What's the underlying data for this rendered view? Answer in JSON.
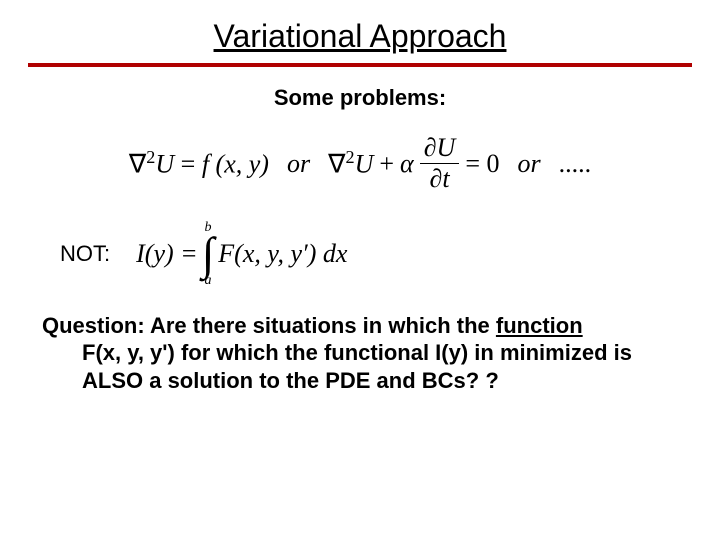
{
  "title": "Variational Approach",
  "subhead": "Some problems:",
  "eq": {
    "term1_lhs_pre": "∇",
    "term1_lhs_sup": "2",
    "term1_lhs_U": "U",
    "term1_eq": "=",
    "term1_rhs": "f (x, y)",
    "or1": "or",
    "term2_pre": "∇",
    "term2_sup": "2",
    "term2_U": "U",
    "term2_plus": "+",
    "term2_alpha": "α",
    "term2_frac_num": "∂U",
    "term2_frac_den": "∂t",
    "term2_eq0": "= 0",
    "or2": "or",
    "dots": "....."
  },
  "not_label": "NOT:",
  "integral": {
    "lhs": "I(y) =",
    "upper": "b",
    "lower": "a",
    "integrand": "F(x, y, y′) dx"
  },
  "question": {
    "line1_pre": "Question:  Are there situations in which the ",
    "line1_ul": "function",
    "line2a": "F(x, y, y') for which the functional I(y) in minimized is",
    "line2b": "ALSO a solution to the PDE and BCs? ?"
  },
  "colors": {
    "rule": "#b00000",
    "text": "#000000",
    "background": "#ffffff"
  },
  "fonts": {
    "sans": "Arial",
    "serif": "Times New Roman",
    "title_size": 32,
    "body_size": 22,
    "eq_size": 26
  }
}
